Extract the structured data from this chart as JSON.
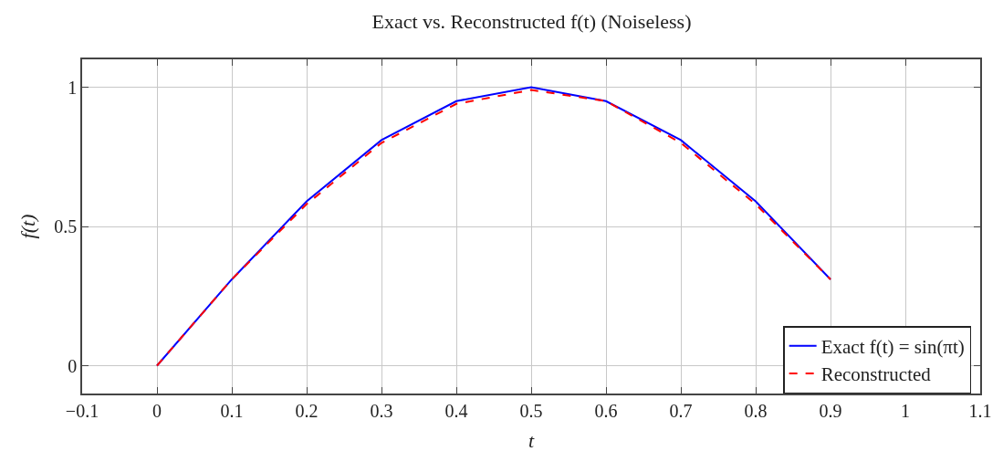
{
  "chart_data": {
    "type": "line",
    "title": "Exact vs. Reconstructed f(t) (Noiseless)",
    "xlabel": "t",
    "ylabel": "f(t)",
    "x": [
      0,
      0.1,
      0.2,
      0.3,
      0.4,
      0.5,
      0.6,
      0.7,
      0.8,
      0.9
    ],
    "series": [
      {
        "name": "Exact f(t) = sin(πt)",
        "color": "#0000ff",
        "line_style": "solid",
        "values": [
          0,
          0.31,
          0.59,
          0.81,
          0.95,
          1,
          0.95,
          0.81,
          0.59,
          0.31
        ]
      },
      {
        "name": "Reconstructed",
        "color": "#ff0000",
        "line_style": "dashed",
        "values": [
          0,
          0.31,
          0.58,
          0.8,
          0.94,
          0.99,
          0.95,
          0.8,
          0.58,
          0.31
        ]
      }
    ],
    "xlim": [
      -0.1,
      1.1
    ],
    "xticks": [
      {
        "value": -0.1,
        "label": "−0.1"
      },
      0,
      0.1,
      0.2,
      0.3,
      0.4,
      0.5,
      0.6,
      0.7,
      0.8,
      0.9,
      1,
      1.1
    ],
    "ylim": [
      -0.1,
      1.1
    ],
    "yticks": [
      0,
      0.5,
      1
    ],
    "grid": true,
    "legend": "bottom right",
    "marker": "none"
  }
}
